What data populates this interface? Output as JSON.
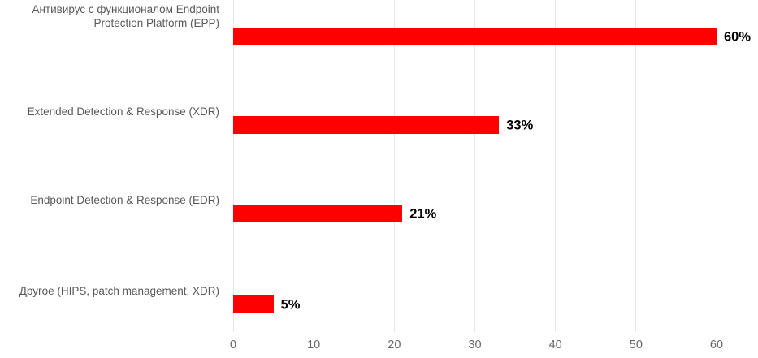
{
  "chart_data": {
    "type": "bar",
    "orientation": "horizontal",
    "title": "",
    "categories": [
      "Антивирус с функционалом Endpoint Protection Platform (EPP)",
      "Extended Detection & Response (XDR)",
      "Endpoint Detection & Response (EDR)",
      "Другое (HIPS, patch management, XDR)"
    ],
    "values": [
      60,
      33,
      21,
      5
    ],
    "value_labels": [
      "60%",
      "33%",
      "21%",
      "5%"
    ],
    "x_ticks": [
      "0",
      "10",
      "20",
      "30",
      "40",
      "50",
      "60"
    ],
    "xlim": [
      0,
      60
    ],
    "xlabel": "",
    "ylabel": "",
    "grid": true,
    "legend": false,
    "colors": {
      "bar": "#FF0000",
      "category_label": "#595959",
      "tick_label": "#666666",
      "gridline": "#E6E6E6",
      "value_label": "#000000",
      "background": "#FFFFFF"
    }
  }
}
